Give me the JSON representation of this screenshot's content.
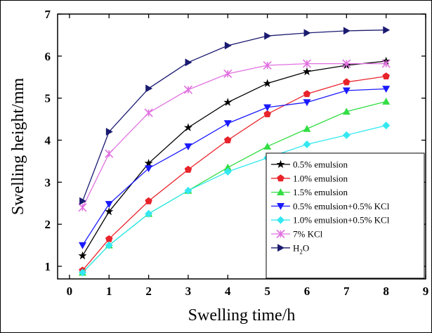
{
  "chart_data": {
    "type": "line",
    "title": "",
    "xlabel": "Swelling time/h",
    "ylabel": "Swelling height/mm",
    "xlim": [
      -0.3,
      9
    ],
    "ylim": [
      0.7,
      7
    ],
    "xticks": [
      0,
      1,
      2,
      3,
      4,
      5,
      6,
      7,
      8,
      9
    ],
    "yticks": [
      1,
      2,
      3,
      4,
      5,
      6,
      7
    ],
    "legend_position": "bottom-right",
    "grid": false,
    "x": [
      0.33,
      1,
      2,
      3,
      4,
      5,
      6,
      7,
      8
    ],
    "series": [
      {
        "name": "0.5% emulsion",
        "marker": "star",
        "color": "#000000",
        "values": [
          1.25,
          2.3,
          3.45,
          4.3,
          4.9,
          5.35,
          5.63,
          5.78,
          5.88
        ]
      },
      {
        "name": "1.0% emulsion",
        "marker": "pentagon",
        "color": "#e8232a",
        "values": [
          0.9,
          1.65,
          2.55,
          3.3,
          4.0,
          4.62,
          5.1,
          5.38,
          5.52
        ]
      },
      {
        "name": "1.5% emulsion",
        "marker": "triangle-up",
        "color": "#33dd44",
        "values": [
          0.85,
          1.5,
          2.25,
          2.8,
          3.35,
          3.85,
          4.27,
          4.68,
          4.92
        ]
      },
      {
        "name": "0.5% emulsion+0.5% KCl",
        "marker": "triangle-down",
        "color": "#1a1aff",
        "values": [
          1.5,
          2.48,
          3.33,
          3.85,
          4.4,
          4.78,
          4.9,
          5.18,
          5.22
        ]
      },
      {
        "name": "1.0% emulsion+0.5% KCl",
        "marker": "diamond",
        "color": "#33e8f0",
        "values": [
          0.85,
          1.5,
          2.25,
          2.8,
          3.25,
          3.58,
          3.9,
          4.12,
          4.35
        ]
      },
      {
        "name": "7% KCl",
        "marker": "x",
        "color": "#e070e0",
        "values": [
          2.4,
          3.68,
          4.65,
          5.2,
          5.58,
          5.78,
          5.82,
          5.82,
          5.82
        ]
      },
      {
        "name": "H₂O",
        "name_parts": [
          "H",
          "2",
          "O"
        ],
        "marker": "triangle-right",
        "color": "#1a1a70",
        "values": [
          2.55,
          4.2,
          5.23,
          5.85,
          6.25,
          6.48,
          6.55,
          6.6,
          6.62
        ]
      }
    ]
  }
}
